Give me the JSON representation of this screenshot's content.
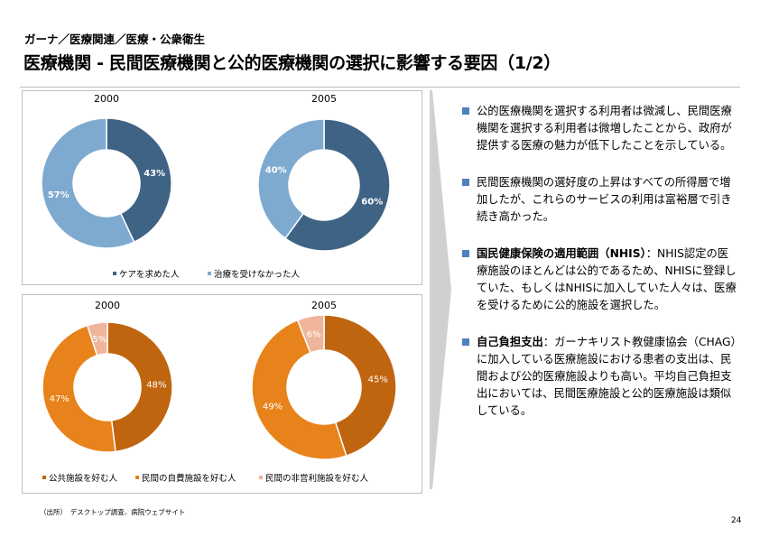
{
  "header": {
    "breadcrumb": "ガーナ／医療関連／医療・公衆衛生",
    "title": "医療機関 - 民間医療機関と公的医療機関の選択に影響する要因（1/2）"
  },
  "chart_data": [
    {
      "type": "pie",
      "variant": "donut",
      "legend_position": "bottom",
      "legend": [
        "ケアを求めた人",
        "治療を受けなかった人"
      ],
      "colors": [
        "#3f6384",
        "#7eaad0"
      ],
      "charts": [
        {
          "title": "2000",
          "values": [
            43,
            57
          ],
          "labels": [
            "43%",
            "57%"
          ]
        },
        {
          "title": "2005",
          "values": [
            60,
            40
          ],
          "labels": [
            "60%",
            "40%"
          ]
        }
      ]
    },
    {
      "type": "pie",
      "variant": "donut",
      "legend_position": "bottom",
      "legend": [
        "公共施設を好む人",
        "民間の自費施設を好む人",
        "民間の非営利施設を好む人"
      ],
      "colors": [
        "#c0650f",
        "#e8821a",
        "#efb59b"
      ],
      "charts": [
        {
          "title": "2000",
          "values": [
            48,
            47,
            5
          ],
          "labels": [
            "48%",
            "47%",
            "5%"
          ]
        },
        {
          "title": "2005",
          "values": [
            45,
            49,
            6
          ],
          "labels": [
            "45%",
            "49%",
            "6%"
          ]
        }
      ]
    }
  ],
  "bullets": [
    {
      "bold": "",
      "text": "公的医療機関を選択する利用者は微減し、民間医療機関を選択する利用者は微増したことから、政府が提供する医療の魅力が低下したことを示している。"
    },
    {
      "bold": "",
      "text": "民間医療機関の選好度の上昇はすべての所得層で増加したが、これらのサービスの利用は富裕層で引き続き高かった。"
    },
    {
      "bold": "国民健康保険の適用範囲（NHIS）",
      "text": "：NHIS認定の医療施設のほとんどは公的であるため、NHISに登録していた、もしくはNHISに加入していた人々は、医療を受けるために公的施設を選択した。"
    },
    {
      "bold": "自己負担支出",
      "text": "：ガーナキリスト教健康協会（CHAG）に加入している医療施設における患者の支出は、民間および公的医療施設よりも高い。平均自己負担支出においては、民間医療施設と公的医療施設は類似している。"
    }
  ],
  "footer": {
    "source": "（出所）　デスクトップ調査、病院ウェブサイト",
    "page": "24"
  }
}
